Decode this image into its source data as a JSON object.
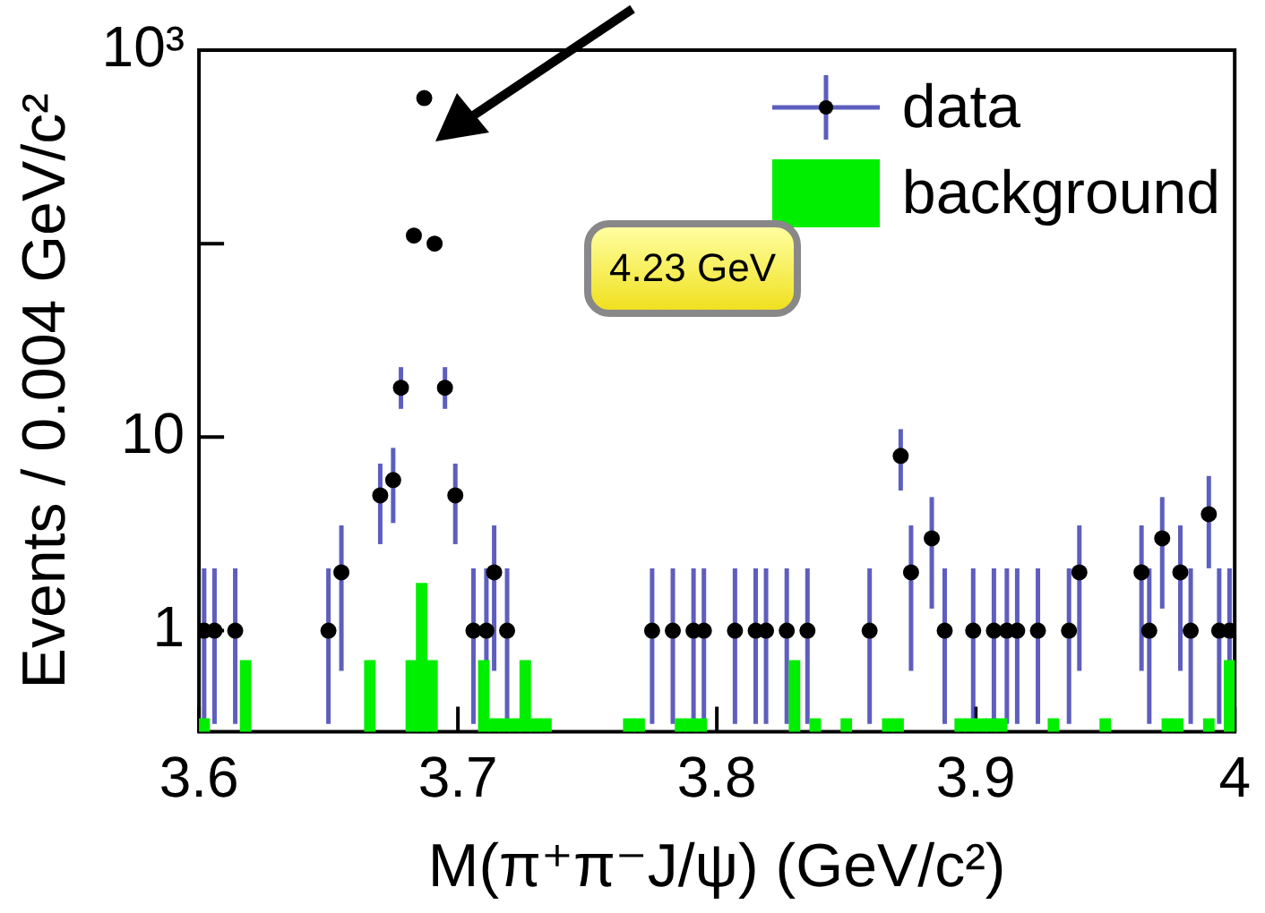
{
  "chart_data": {
    "type": "scatter",
    "xlabel": "M(π⁺π⁻J/ψ) (GeV/c²)",
    "ylabel": "Events / 0.004 GeV/c²",
    "annotations": [
      "4.23 GeV"
    ],
    "xlim": [
      3.6,
      4.0
    ],
    "xticks": [
      3.6,
      3.7,
      3.8,
      3.9,
      4
    ],
    "ylim": [
      0.3,
      1000
    ],
    "yticks": [
      1,
      10,
      {
        "value": 100,
        "label": null
      },
      {
        "value": 1000,
        "label": "10³"
      }
    ],
    "log": "y",
    "grid": false,
    "legend": "top right",
    "marker": "circle",
    "series": [
      {
        "name": "data",
        "color": "#000000",
        "x": [
          3.602,
          3.606,
          3.614,
          3.65,
          3.655,
          3.67,
          3.675,
          3.678,
          3.683,
          3.687,
          3.691,
          3.695,
          3.699,
          3.706,
          3.711,
          3.714,
          3.719,
          3.775,
          3.783,
          3.791,
          3.795,
          3.807,
          3.815,
          3.819,
          3.827,
          3.835,
          3.859,
          3.871,
          3.875,
          3.883,
          3.888,
          3.899,
          3.907,
          3.912,
          3.916,
          3.924,
          3.936,
          3.94,
          3.964,
          3.967,
          3.972,
          3.979,
          3.983,
          3.99,
          3.994,
          3.998
        ],
        "values": [
          1,
          1,
          1,
          1,
          2,
          5,
          6,
          18,
          110,
          565,
          100,
          18,
          5,
          1,
          1,
          2,
          1,
          1,
          1,
          1,
          1,
          1,
          1,
          1,
          1,
          1,
          1,
          8,
          2,
          3,
          1,
          1,
          1,
          1,
          1,
          1,
          1,
          2,
          2,
          1,
          3,
          2,
          1,
          4,
          1,
          1
        ],
        "errors": [
          [
            0.33,
            2.1
          ],
          [
            0.33,
            2.1
          ],
          [
            0.33,
            2.1
          ],
          [
            0.33,
            2.1
          ],
          [
            0.62,
            3.5
          ],
          [
            2.8,
            7.3
          ],
          [
            3.6,
            8.8
          ],
          [
            14,
            23
          ],
          null,
          null,
          null,
          [
            14,
            23
          ],
          [
            2.8,
            7.3
          ],
          [
            0.33,
            2.1
          ],
          [
            0.33,
            2.1
          ],
          [
            0.62,
            3.5
          ],
          [
            0.33,
            2.1
          ],
          [
            0.33,
            2.1
          ],
          [
            0.33,
            2.1
          ],
          [
            0.33,
            2.1
          ],
          [
            0.33,
            2.1
          ],
          [
            0.33,
            2.1
          ],
          [
            0.33,
            2.1
          ],
          [
            0.33,
            2.1
          ],
          [
            0.33,
            2.1
          ],
          [
            0.33,
            2.1
          ],
          [
            0.33,
            2.1
          ],
          [
            5.3,
            11
          ],
          [
            0.62,
            3.5
          ],
          [
            1.3,
            4.9
          ],
          [
            0.33,
            2.1
          ],
          [
            0.33,
            2.1
          ],
          [
            0.33,
            2.1
          ],
          [
            0.33,
            2.1
          ],
          [
            0.33,
            2.1
          ],
          [
            0.33,
            2.1
          ],
          [
            0.33,
            2.1
          ],
          [
            0.62,
            3.5
          ],
          [
            0.62,
            3.5
          ],
          [
            0.33,
            2.1
          ],
          [
            1.3,
            4.9
          ],
          [
            0.62,
            3.5
          ],
          [
            0.33,
            2.1
          ],
          [
            2.1,
            6.3
          ],
          [
            0.33,
            2.1
          ],
          [
            0.33,
            2.1
          ]
        ]
      },
      {
        "name": "background",
        "type": "histogram",
        "color": "#00ee00",
        "bins": [
          3.6,
          3.604,
          3.608,
          3.612,
          3.616,
          3.62,
          3.624,
          3.628,
          3.632,
          3.636,
          3.64,
          3.644,
          3.648,
          3.652,
          3.656,
          3.66,
          3.664,
          3.668,
          3.672,
          3.676,
          3.68,
          3.684,
          3.688,
          3.692,
          3.696,
          3.7,
          3.704,
          3.708,
          3.712,
          3.716,
          3.72,
          3.724,
          3.728,
          3.732,
          3.736,
          3.74,
          3.744,
          3.748,
          3.752,
          3.756,
          3.76,
          3.764,
          3.768,
          3.772,
          3.776,
          3.78,
          3.784,
          3.788,
          3.792,
          3.796,
          3.8,
          3.804,
          3.808,
          3.812,
          3.816,
          3.82,
          3.824,
          3.828,
          3.832,
          3.836,
          3.84,
          3.844,
          3.848,
          3.852,
          3.856,
          3.86,
          3.864,
          3.868,
          3.872,
          3.876,
          3.88,
          3.884,
          3.888,
          3.892,
          3.896,
          3.9,
          3.904,
          3.908,
          3.912,
          3.916,
          3.92,
          3.924,
          3.928,
          3.932,
          3.936,
          3.94,
          3.944,
          3.948,
          3.952,
          3.956,
          3.96,
          3.964,
          3.968,
          3.972,
          3.976,
          3.98,
          3.984,
          3.988,
          3.992,
          3.996,
          4.0
        ],
        "values": [
          0.35,
          null,
          null,
          null,
          0.7,
          null,
          null,
          null,
          null,
          null,
          null,
          null,
          null,
          null,
          null,
          null,
          0.7,
          null,
          null,
          null,
          0.7,
          1.75,
          0.7,
          null,
          null,
          null,
          null,
          0.7,
          0.35,
          0.35,
          0.35,
          0.7,
          0.35,
          0.35,
          null,
          null,
          null,
          null,
          null,
          null,
          null,
          0.35,
          0.35,
          null,
          null,
          null,
          0.35,
          0.35,
          0.35,
          null,
          null,
          null,
          null,
          null,
          null,
          null,
          null,
          0.7,
          null,
          0.35,
          null,
          null,
          0.35,
          null,
          null,
          null,
          0.35,
          0.35,
          null,
          null,
          null,
          null,
          null,
          0.35,
          0.35,
          0.35,
          0.35,
          0.35,
          null,
          null,
          null,
          null,
          0.35,
          null,
          null,
          null,
          null,
          0.35,
          null,
          null,
          null,
          null,
          null,
          0.35,
          0.35,
          null,
          null,
          0.35,
          null,
          0.7
        ]
      }
    ]
  }
}
